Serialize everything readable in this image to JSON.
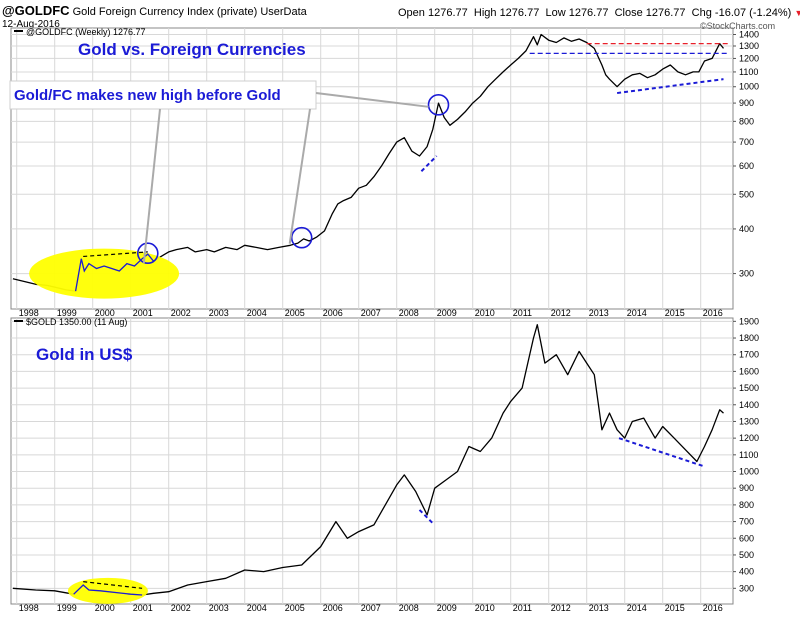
{
  "header": {
    "symbol": "@GOLDFC",
    "description": "Gold Foreign Currency Index (private)",
    "source": "UserData",
    "date": "12-Aug-2016",
    "open_label": "Open",
    "open": "1276.77",
    "high_label": "High",
    "high": "1276.77",
    "low_label": "Low",
    "low": "1276.77",
    "close_label": "Close",
    "close": "1276.77",
    "chg_label": "Chg",
    "chg": "-16.07 (-1.24%)",
    "credit": "©StockCharts.com"
  },
  "colors": {
    "annotation": "#1b1bd6",
    "highlight": "#ffff00",
    "red_dash": "#e8202a",
    "price": "#000000",
    "grid": "#d8d8d8"
  },
  "chart_data": [
    {
      "type": "line",
      "legend": "@GOLDFC (Weekly) 1276.77",
      "title": "Gold vs. Foreign Currencies",
      "callout": "Gold/FC makes new high before Gold",
      "scale": "log",
      "ylim": [
        245,
        1460
      ],
      "xlim": [
        1997.85,
        2016.85
      ],
      "yticks": [
        300,
        400,
        500,
        600,
        700,
        800,
        900,
        1000,
        1100,
        1200,
        1300,
        1400
      ],
      "x": [
        1997.9,
        1998.2,
        1998.5,
        1998.8,
        1999.0,
        1999.3,
        1999.55,
        1999.7,
        1999.78,
        1999.9,
        2000.1,
        2000.3,
        2000.5,
        2000.7,
        2000.9,
        2001.1,
        2001.3,
        2001.45,
        2001.6,
        2001.8,
        2002.0,
        2002.2,
        2002.5,
        2002.7,
        2003.0,
        2003.2,
        2003.5,
        2003.8,
        2004.0,
        2004.3,
        2004.6,
        2004.9,
        2005.2,
        2005.4,
        2005.55,
        2005.7,
        2005.9,
        2006.1,
        2006.3,
        2006.45,
        2006.6,
        2006.8,
        2007.0,
        2007.2,
        2007.4,
        2007.6,
        2007.8,
        2008.0,
        2008.2,
        2008.4,
        2008.6,
        2008.8,
        2008.95,
        2009.1,
        2009.25,
        2009.4,
        2009.6,
        2009.8,
        2010.0,
        2010.2,
        2010.4,
        2010.6,
        2010.8,
        2011.0,
        2011.2,
        2011.4,
        2011.6,
        2011.7,
        2011.8,
        2012.0,
        2012.2,
        2012.4,
        2012.6,
        2012.8,
        2013.0,
        2013.2,
        2013.4,
        2013.5,
        2013.6,
        2013.8,
        2014.0,
        2014.2,
        2014.4,
        2014.6,
        2014.8,
        2015.0,
        2015.2,
        2015.4,
        2015.6,
        2015.8,
        2015.95,
        2016.1,
        2016.3,
        2016.5,
        2016.6
      ],
      "values": [
        290,
        285,
        280,
        278,
        275,
        270,
        268,
        330,
        305,
        320,
        310,
        315,
        310,
        305,
        320,
        315,
        330,
        340,
        325,
        335,
        345,
        350,
        355,
        345,
        350,
        345,
        355,
        350,
        360,
        355,
        350,
        355,
        360,
        365,
        375,
        370,
        380,
        395,
        440,
        470,
        480,
        490,
        520,
        530,
        560,
        600,
        650,
        700,
        720,
        660,
        640,
        680,
        760,
        900,
        820,
        780,
        810,
        850,
        900,
        940,
        1000,
        1050,
        1100,
        1150,
        1200,
        1260,
        1380,
        1310,
        1400,
        1350,
        1330,
        1370,
        1340,
        1360,
        1330,
        1280,
        1150,
        1080,
        1050,
        1000,
        1050,
        1080,
        1090,
        1060,
        1080,
        1120,
        1150,
        1100,
        1080,
        1100,
        1100,
        1180,
        1200,
        1320,
        1280
      ],
      "xticks": [
        {
          "v": 1998,
          "label": "1998"
        },
        {
          "v": 1999,
          "label": "1999"
        },
        {
          "v": 2000,
          "label": "2000"
        },
        {
          "v": 2001,
          "label": "2001"
        },
        {
          "v": 2002,
          "label": "2002"
        },
        {
          "v": 2003,
          "label": "2003"
        },
        {
          "v": 2004,
          "label": "2004"
        },
        {
          "v": 2005,
          "label": "2005"
        },
        {
          "v": 2006,
          "label": "2006"
        },
        {
          "v": 2007,
          "label": "2007"
        },
        {
          "v": 2008,
          "label": "2008"
        },
        {
          "v": 2009,
          "label": "2009"
        },
        {
          "v": 2010,
          "label": "2010"
        },
        {
          "v": 2011,
          "label": "2011"
        },
        {
          "v": 2012,
          "label": "2012"
        },
        {
          "v": 2013,
          "label": "2013"
        },
        {
          "v": 2014,
          "label": "2014"
        },
        {
          "v": 2015,
          "label": "2015"
        },
        {
          "v": 2016,
          "label": "2016"
        }
      ]
    },
    {
      "type": "line",
      "legend": "$GOLD 1350.00 (11 Aug)",
      "title": "Gold in US$",
      "scale": "linear",
      "ylim": [
        230,
        1920
      ],
      "xlim": [
        1997.85,
        2016.85
      ],
      "yticks": [
        300,
        400,
        500,
        600,
        700,
        800,
        900,
        1000,
        1100,
        1200,
        1300,
        1400,
        1500,
        1600,
        1700,
        1800,
        1900
      ],
      "x": [
        1997.9,
        1998.5,
        1999.0,
        1999.5,
        1999.75,
        1999.9,
        2000.2,
        2000.6,
        2001.0,
        2001.3,
        2001.6,
        2002.0,
        2002.5,
        2003.0,
        2003.5,
        2004.0,
        2004.5,
        2005.0,
        2005.5,
        2006.0,
        2006.4,
        2006.7,
        2007.0,
        2007.4,
        2007.7,
        2008.0,
        2008.2,
        2008.5,
        2008.8,
        2009.0,
        2009.3,
        2009.6,
        2009.9,
        2010.2,
        2010.5,
        2010.8,
        2011.0,
        2011.3,
        2011.6,
        2011.7,
        2011.9,
        2012.2,
        2012.5,
        2012.8,
        2013.0,
        2013.2,
        2013.4,
        2013.6,
        2013.8,
        2014.0,
        2014.2,
        2014.5,
        2014.8,
        2015.0,
        2015.3,
        2015.6,
        2015.9,
        2016.1,
        2016.3,
        2016.5,
        2016.6
      ],
      "values": [
        300,
        290,
        285,
        265,
        320,
        290,
        285,
        275,
        265,
        260,
        270,
        280,
        320,
        340,
        360,
        410,
        400,
        425,
        440,
        550,
        700,
        600,
        640,
        680,
        800,
        920,
        980,
        880,
        740,
        900,
        950,
        1000,
        1150,
        1120,
        1200,
        1350,
        1420,
        1500,
        1800,
        1880,
        1650,
        1700,
        1580,
        1720,
        1650,
        1580,
        1250,
        1350,
        1250,
        1200,
        1300,
        1320,
        1200,
        1270,
        1200,
        1130,
        1060,
        1150,
        1250,
        1370,
        1350
      ]
    }
  ]
}
